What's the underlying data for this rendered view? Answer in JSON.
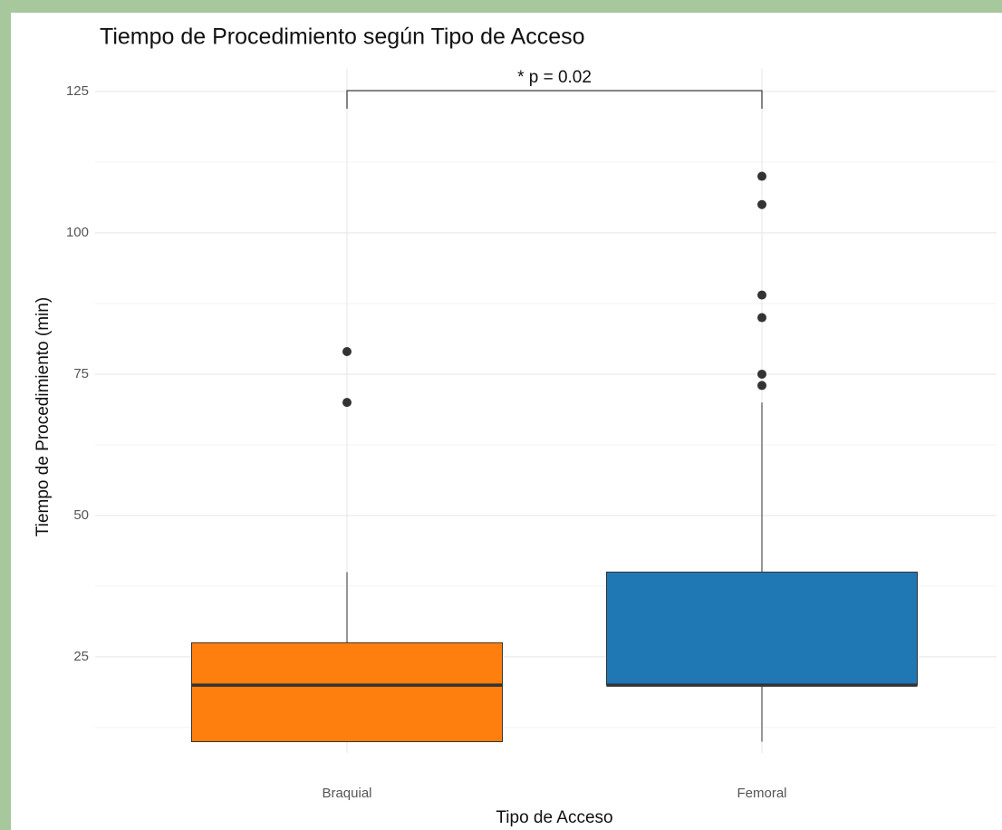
{
  "chart_data": {
    "type": "box",
    "title": "Tiempo de Procedimiento según Tipo de Acceso",
    "x_label": "Tipo de Acceso",
    "y_label": "Tiempo de Procedimiento (min)",
    "annotation": "* p = 0.02",
    "categories": [
      "Braquial",
      "Femoral"
    ],
    "boxes": [
      {
        "color": "#ff7f0e",
        "whisker_low": 10,
        "q1": 10,
        "median": 20,
        "q3": 27.5,
        "whisker_high": 40,
        "outliers": [
          79,
          70
        ]
      },
      {
        "color": "#1f77b4",
        "whisker_low": 10,
        "q1": 20,
        "median": 20,
        "q3": 40,
        "whisker_high": 70,
        "outliers": [
          110,
          105,
          89,
          85,
          75,
          73
        ]
      }
    ],
    "ylim": [
      8,
      129
    ],
    "yticks": [
      25,
      50,
      75,
      100,
      125
    ],
    "y_minor_ticks": [
      12.5,
      37.5,
      62.5,
      87.5,
      112.5
    ],
    "grid": true
  }
}
